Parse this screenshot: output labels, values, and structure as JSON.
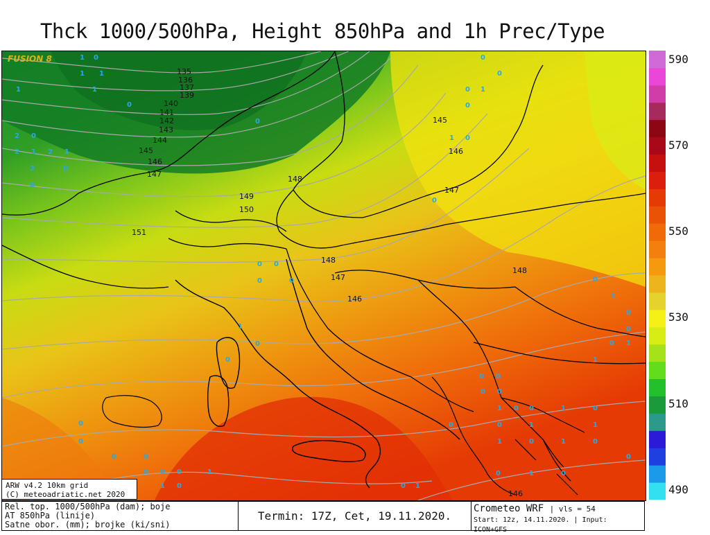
{
  "header": {
    "title": "Thck 1000/500hPa, Height 850hPa and 1h Prec/Type"
  },
  "map": {
    "brand": "FUSION 8",
    "height_labels": [
      "135",
      "136",
      "137",
      "139",
      "140",
      "141",
      "142",
      "143",
      "144",
      "145",
      "146",
      "147",
      "148",
      "149",
      "150",
      "151",
      "145",
      "146",
      "147",
      "148",
      "147",
      "146",
      "148",
      "146"
    ],
    "precip_marks": [
      "0",
      "1",
      "2"
    ]
  },
  "colorbar": {
    "labels": [
      "590",
      "570",
      "550",
      "530",
      "510",
      "490"
    ],
    "colors": [
      "#33e0f0",
      "#1a9ae8",
      "#1e40e0",
      "#2b1ad8",
      "#2c9a8a",
      "#1a9a3a",
      "#22c12c",
      "#62dd1c",
      "#a6e21a",
      "#d8ec16",
      "#f5f015",
      "#e6d22c",
      "#ecb51e",
      "#f59a0f",
      "#f3800c",
      "#f06a08",
      "#ea5306",
      "#e53a04",
      "#dc1e0c",
      "#c5100e",
      "#a90818",
      "#8c0614",
      "#a62a5c",
      "#d03ca8",
      "#ea46d8",
      "#cf6ad6"
    ]
  },
  "credit": {
    "line1": "ARW v4.2 10km grid",
    "line2": "(C) meteoadriatic.net 2020"
  },
  "footer": {
    "legend1": "Rel. top. 1000/500hPa (dam); boje",
    "legend2": "AT 850hPa (linije)",
    "legend3": "Satne obor. (mm); brojke (ki/sni)",
    "termin": "Termin: 17Z, Cet, 19.11.2020.",
    "model": "Crometeo WRF",
    "vis": "vls = 54",
    "start": "Start: 12z, 14.11.2020.",
    "input": "Input: ICON+GFS"
  }
}
